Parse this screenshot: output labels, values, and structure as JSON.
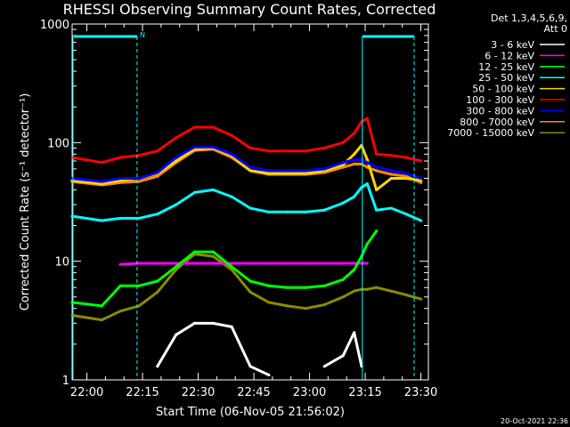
{
  "chart_data": {
    "type": "line",
    "title": "RHESSI Observing Summary Count Rates, Corrected",
    "xlabel": "Start Time (06-Nov-05 21:56:02)",
    "ylabel": "Corrected Count Rate (s⁻¹ detector⁻¹)",
    "yscale": "log",
    "ylim": [
      1,
      1000
    ],
    "xlim_minutes_after_start": [
      0,
      96
    ],
    "x_ticks": [
      "22:00",
      "22:15",
      "22:30",
      "22:45",
      "23:00",
      "23:15",
      "23:30"
    ],
    "x_tick_minutes": [
      3.97,
      18.97,
      33.97,
      48.97,
      63.97,
      78.97,
      93.97
    ],
    "y_ticks": [
      "1",
      "10",
      "100",
      "1000"
    ],
    "y_tick_values": [
      1,
      10,
      100,
      1000
    ],
    "legend_header": [
      "Det 1,3,4,5,6,9,",
      "Att 0"
    ],
    "legend_position": "right",
    "flag_label": "N",
    "footer": "20-Oct-2021 22:36",
    "x_minutes": [
      0,
      8,
      13,
      18,
      23,
      28,
      33,
      38,
      43,
      48,
      53,
      58,
      63,
      68,
      73,
      76,
      78,
      79.5,
      82,
      86,
      90,
      94
    ],
    "series": [
      {
        "name": "3 - 6 keV",
        "color": "#ffffff",
        "values": [
          null,
          null,
          null,
          null,
          1.3,
          2.4,
          3.0,
          3.0,
          2.8,
          1.3,
          1.1,
          null,
          null,
          1.3,
          1.6,
          2.5,
          1.3,
          null,
          null,
          null,
          null,
          null
        ]
      },
      {
        "name": "6 - 12 keV",
        "color": "#ff00ff",
        "values": [
          null,
          null,
          9.4,
          9.6,
          9.6,
          9.6,
          9.6,
          9.6,
          9.6,
          9.6,
          9.6,
          9.6,
          9.6,
          9.6,
          9.6,
          9.6,
          9.6,
          9.6,
          null,
          null,
          null,
          null
        ]
      },
      {
        "name": "12 - 25 keV",
        "color": "#00ff00",
        "values": [
          4.5,
          4.2,
          6.2,
          6.2,
          6.8,
          9.0,
          12.0,
          12.0,
          9.0,
          6.8,
          6.2,
          6.0,
          6.0,
          6.2,
          7.0,
          8.5,
          11.0,
          14.0,
          18.0,
          null,
          null,
          null
        ]
      },
      {
        "name": "25 - 50 keV",
        "color": "#00ffff",
        "values": [
          24,
          22,
          23,
          23,
          25,
          30,
          38,
          40,
          35,
          28,
          26,
          26,
          26,
          27,
          31,
          35,
          42,
          45,
          27,
          28,
          25,
          22
        ]
      },
      {
        "name": "50 - 100 keV",
        "color": "#ffd700",
        "values": [
          48,
          45,
          48,
          50,
          55,
          70,
          88,
          90,
          78,
          58,
          55,
          55,
          55,
          58,
          65,
          80,
          95,
          72,
          40,
          50,
          50,
          48
        ]
      },
      {
        "name": "100 - 300 keV",
        "color": "#ff0000",
        "values": [
          75,
          68,
          75,
          78,
          85,
          110,
          135,
          135,
          115,
          90,
          85,
          85,
          85,
          90,
          100,
          120,
          150,
          160,
          80,
          78,
          75,
          70
        ]
      },
      {
        "name": "300 - 800 keV",
        "color": "#0000ff",
        "values": [
          50,
          47,
          50,
          50,
          56,
          75,
          92,
          92,
          80,
          62,
          58,
          58,
          58,
          60,
          68,
          72,
          72,
          68,
          62,
          58,
          55,
          50
        ]
      },
      {
        "name": "800 - 7000 keV",
        "color": "#ff8c00",
        "values": [
          47,
          44,
          46,
          47,
          52,
          68,
          86,
          88,
          75,
          58,
          54,
          54,
          54,
          56,
          62,
          66,
          66,
          62,
          58,
          54,
          52,
          46
        ]
      },
      {
        "name": "7000 - 15000 keV",
        "color": "#8b8b00",
        "values": [
          3.5,
          3.2,
          3.8,
          4.2,
          5.5,
          8.5,
          11.5,
          11.0,
          8.5,
          5.5,
          4.5,
          4.2,
          4.0,
          4.3,
          5.0,
          5.6,
          5.8,
          5.8,
          6.0,
          5.6,
          5.2,
          4.8
        ]
      }
    ]
  }
}
